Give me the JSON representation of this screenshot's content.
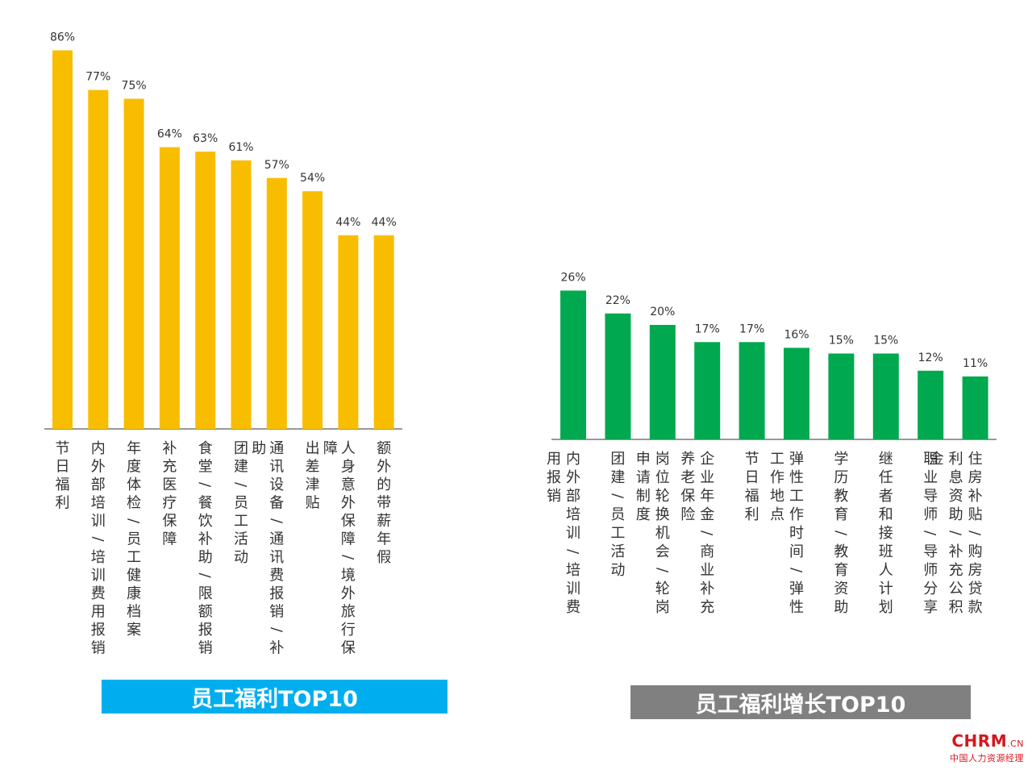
{
  "colors": {
    "left_bar": "#f9bd00",
    "right_bar": "#00a94f",
    "left_title_bg": "#00aeef",
    "right_title_bg": "#808080",
    "axis": "#777777",
    "text": "#333333",
    "logo": "#d6161e"
  },
  "chart_data": [
    {
      "type": "bar",
      "title": "员工福利TOP10",
      "ylim": [
        0,
        100
      ],
      "categories": [
        "节日福利",
        "内外部培训/培训费用报销",
        "年度体检/员工健康档案",
        "补充医疗保障",
        "食堂/餐饮补助/限额报销",
        "团建/员工活动",
        "通讯设备/通讯费报销/补助",
        "出差津贴",
        "人身意外保障/境外旅行保障",
        "额外的带薪年假"
      ],
      "values": [
        86,
        77,
        75,
        64,
        63,
        61,
        57,
        54,
        44,
        44
      ],
      "labels": [
        "86%",
        "77%",
        "75%",
        "64%",
        "63%",
        "61%",
        "57%",
        "54%",
        "44%",
        "44%"
      ]
    },
    {
      "type": "bar",
      "title": "员工福利增长TOP10",
      "ylim": [
        0,
        100
      ],
      "categories": [
        "内外部培训/培训费用报销",
        "团建/员工活动",
        "岗位轮换机会/轮岗申请制度",
        "企业年金/商业补充养老保险",
        "节日福利",
        "弹性工作时间/弹性工作地点",
        "学历教育/教育资助",
        "继任者和接班人计划",
        "职业导师/导师分享",
        "住房补贴/购房贷款利息资助/补充公积金"
      ],
      "values": [
        26,
        22,
        20,
        17,
        17,
        16,
        15,
        15,
        12,
        11
      ],
      "labels": [
        "26%",
        "22%",
        "20%",
        "17%",
        "17%",
        "16%",
        "15%",
        "15%",
        "12%",
        "11%"
      ]
    }
  ],
  "logo": {
    "brand": "CHRM",
    "domain": ".CN",
    "subtitle": "中国人力资源经理"
  }
}
